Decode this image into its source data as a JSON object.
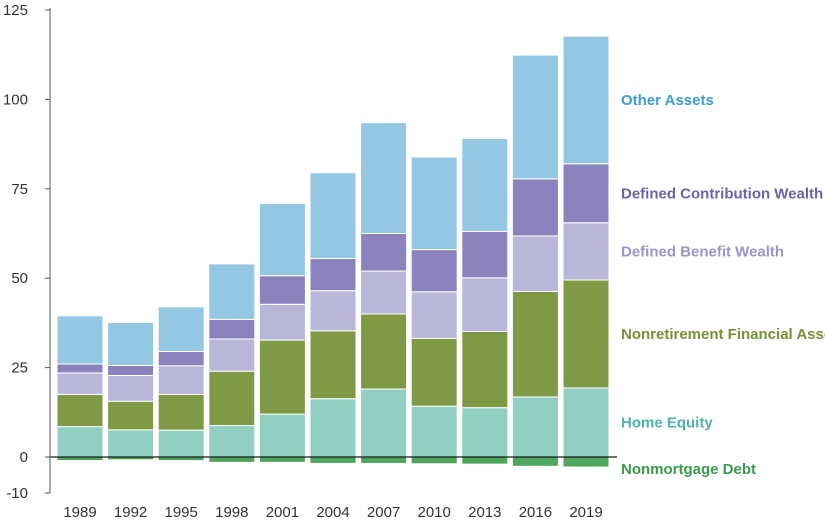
{
  "chart_data": {
    "type": "bar",
    "stacked": true,
    "categories": [
      "1989",
      "1992",
      "1995",
      "1998",
      "2001",
      "2004",
      "2007",
      "2010",
      "2013",
      "2016",
      "2019"
    ],
    "ylim": [
      -10,
      125
    ],
    "yticks": [
      -10,
      0,
      25,
      50,
      75,
      100,
      125
    ],
    "ytick_labels": [
      "-10",
      "0",
      "25",
      "50",
      "75",
      "100",
      "125"
    ],
    "grid": false,
    "legend": "right-inline",
    "series": [
      {
        "name": "Nonmortgage Debt",
        "color": "#4ea65c",
        "values": [
          -1.0,
          -0.8,
          -1.0,
          -1.5,
          -1.5,
          -1.8,
          -1.8,
          -1.9,
          -2.0,
          -2.6,
          -2.8
        ]
      },
      {
        "name": "Home Equity",
        "color": "#92cfc3",
        "values": [
          8.5,
          7.6,
          7.5,
          8.8,
          12.0,
          16.3,
          19.0,
          14.2,
          13.8,
          16.8,
          19.3
        ]
      },
      {
        "name": "Nonretirement Financial Assets",
        "color": "#7f9a45",
        "values": [
          9.0,
          8.0,
          10.0,
          15.2,
          20.7,
          19.0,
          21.0,
          19.0,
          21.3,
          29.5,
          30.2
        ]
      },
      {
        "name": "Defined Benefit Wealth",
        "color": "#b8b6d9",
        "values": [
          6.0,
          7.2,
          8.0,
          9.0,
          10.0,
          11.2,
          12.0,
          13.0,
          15.0,
          15.5,
          16.0
        ]
      },
      {
        "name": "Defined Contribution Wealth",
        "color": "#8b83bd",
        "values": [
          2.5,
          2.8,
          4.0,
          5.5,
          8.0,
          9.0,
          10.5,
          11.8,
          13.0,
          16.0,
          16.5
        ]
      },
      {
        "name": "Other Assets",
        "color": "#93c7e4",
        "values": [
          13.5,
          12.0,
          12.5,
          15.5,
          20.2,
          24.0,
          31.0,
          25.9,
          26.0,
          34.6,
          35.7
        ]
      }
    ],
    "labels": [
      {
        "series": "Other Assets",
        "text": "Other Assets",
        "color": "#3a9dd4"
      },
      {
        "series": "Defined Contribution Wealth",
        "text": "Defined Contribution Wealth",
        "color": "#6e62a9"
      },
      {
        "series": "Defined Benefit Wealth",
        "text": "Defined Benefit Wealth",
        "color": "#9c95cc"
      },
      {
        "series": "Nonretirement Financial Assets",
        "text": "Nonretirement Financial Assets",
        "color": "#769136"
      },
      {
        "series": "Home Equity",
        "text": "Home Equity",
        "color": "#4fb3a8"
      },
      {
        "series": "Nonmortgage Debt",
        "text": "Nonmortgage Debt",
        "color": "#3a9a4c"
      }
    ]
  }
}
